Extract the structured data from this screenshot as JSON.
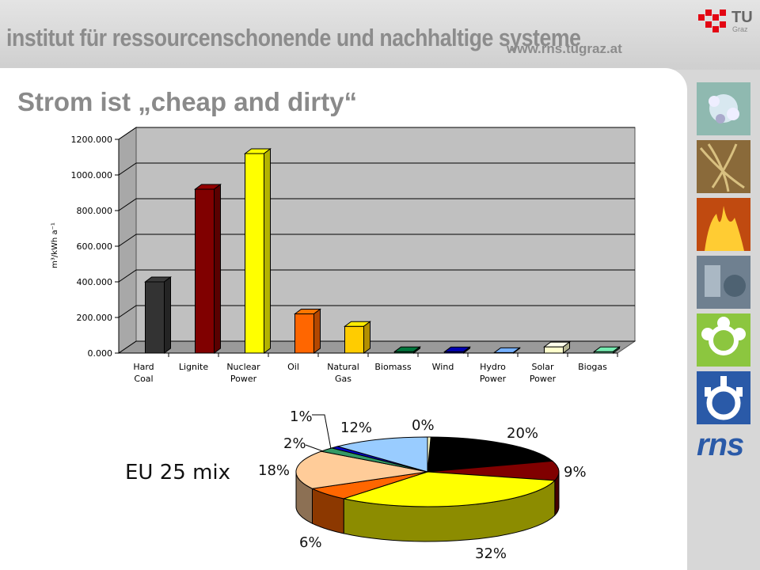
{
  "header": {
    "institute": "institut für ressourcenschonende und nachhaltige systeme",
    "url": "www.rns.tugraz.at",
    "logo_main": "TU",
    "logo_sub": "Graz"
  },
  "slide_title": "Strom ist „cheap and dirty“",
  "sidebar": {
    "logo_text": "rns",
    "thumb_icons": [
      "molecule-thumb-icon",
      "roots-thumb-icon",
      "fire-thumb-icon",
      "lab-thumb-icon",
      "flower-thumb-icon",
      "gear-thumb-icon"
    ]
  },
  "colors": {
    "title_gray": "#8a8a8a",
    "plot_bg": "#c0c0c0",
    "rns_blue": "#2a5aa8",
    "green": "#8cc63f"
  },
  "chart_data": [
    {
      "type": "bar",
      "categories": [
        [
          "Hard",
          "Coal"
        ],
        [
          "Lignite"
        ],
        [
          "Nuclear",
          "Power"
        ],
        [
          "Oil"
        ],
        [
          "Natural",
          "Gas"
        ],
        [
          "Biomass"
        ],
        [
          "Wind"
        ],
        [
          "Hydro",
          "Power"
        ],
        [
          "Solar",
          "Power"
        ],
        [
          "Biogas"
        ]
      ],
      "values": [
        400000,
        920000,
        1120000,
        220000,
        150000,
        8000,
        7000,
        3000,
        35000,
        8000
      ],
      "colors": [
        "#333333",
        "#800000",
        "#ffff00",
        "#ff6600",
        "#ffcc00",
        "#006633",
        "#000099",
        "#6699ff",
        "#ffffcc",
        "#66cc99"
      ],
      "ylabel": "m³/kWh a⁻¹",
      "ylim": [
        0,
        1200000
      ],
      "yticks": [
        "0.000",
        "200.000",
        "400.000",
        "600.000",
        "800.000",
        "1000.000",
        "1200.000"
      ],
      "grid": true,
      "legend": "none"
    },
    {
      "type": "pie",
      "title": "EU 25 mix",
      "labels": [
        "20%",
        "9%",
        "32%",
        "6%",
        "18%",
        "2%",
        "1%",
        "12%",
        "0%"
      ],
      "values": [
        20,
        9,
        32,
        6,
        18,
        2,
        1,
        12,
        0
      ],
      "colors": [
        "#000000",
        "#800000",
        "#ffff00",
        "#ff6600",
        "#ffcc99",
        "#339966",
        "#0000cc",
        "#99ccff",
        "#ffffcc"
      ]
    }
  ]
}
